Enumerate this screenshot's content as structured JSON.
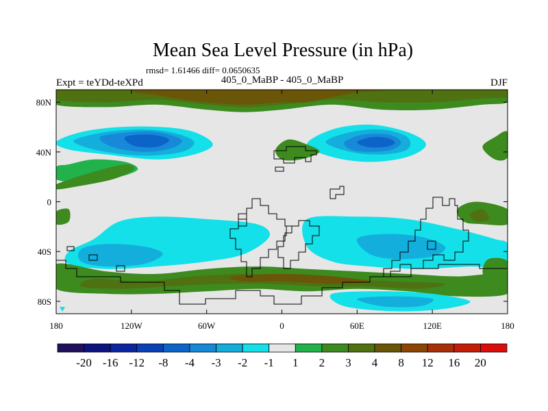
{
  "chart_data": {
    "type": "heatmap",
    "title": "Mean Sea Level Pressure (in hPa)",
    "subtitle": "rmsd= 1.61466 diff= 0.0650635",
    "center_label": "405_0_MaBP - 405_0_MaBP",
    "left_label": "Expt = teYDd-teXPd",
    "right_label": "DJF",
    "xlim": [
      -180,
      180
    ],
    "ylim": [
      -90,
      90
    ],
    "x_ticks": [
      {
        "value": -180,
        "label": "180"
      },
      {
        "value": -120,
        "label": "120W"
      },
      {
        "value": -60,
        "label": "60W"
      },
      {
        "value": 0,
        "label": "0"
      },
      {
        "value": 60,
        "label": "60E"
      },
      {
        "value": 120,
        "label": "120E"
      },
      {
        "value": 180,
        "label": "180"
      }
    ],
    "y_ticks": [
      {
        "value": 80,
        "label": "80N"
      },
      {
        "value": 40,
        "label": "40N"
      },
      {
        "value": 0,
        "label": "0"
      },
      {
        "value": -40,
        "label": "40S"
      },
      {
        "value": -80,
        "label": "80S"
      }
    ],
    "levels": [
      "-20",
      "-16",
      "-12",
      "-8",
      "-4",
      "-3",
      "-2",
      "-1",
      "1",
      "2",
      "3",
      "4",
      "8",
      "12",
      "16",
      "20"
    ],
    "colors": [
      "#22105e",
      "#0d137f",
      "#0a26a0",
      "#0842b6",
      "#0d64c8",
      "#1789d8",
      "#14aedc",
      "#13e0e8",
      "#e6e6e6",
      "#21b24b",
      "#3d8a1f",
      "#4f7111",
      "#6a5608",
      "#8c4504",
      "#a92f06",
      "#c41d06",
      "#dc0d0b"
    ],
    "regions": [
      {
        "name": "arctic-positive-band",
        "level": "2",
        "points": [
          [
            -180,
            78
          ],
          [
            -140,
            76
          ],
          [
            -100,
            78
          ],
          [
            -60,
            74
          ],
          [
            -30,
            72
          ],
          [
            0,
            74
          ],
          [
            40,
            78
          ],
          [
            80,
            74
          ],
          [
            120,
            74
          ],
          [
            160,
            78
          ],
          [
            180,
            80
          ],
          [
            180,
            90
          ],
          [
            -180,
            90
          ]
        ]
      },
      {
        "name": "arctic-positive-core",
        "level": "3",
        "points": [
          [
            -180,
            82
          ],
          [
            -140,
            80
          ],
          [
            -100,
            82
          ],
          [
            -60,
            78
          ],
          [
            -30,
            76
          ],
          [
            0,
            78
          ],
          [
            40,
            82
          ],
          [
            80,
            80
          ],
          [
            120,
            80
          ],
          [
            160,
            83
          ],
          [
            180,
            84
          ],
          [
            180,
            90
          ],
          [
            -180,
            90
          ]
        ]
      },
      {
        "name": "arctic-positive-max",
        "level": "4",
        "points": [
          [
            -110,
            90
          ],
          [
            -90,
            84
          ],
          [
            -60,
            80
          ],
          [
            -30,
            78
          ],
          [
            0,
            80
          ],
          [
            20,
            80
          ],
          [
            40,
            84
          ],
          [
            60,
            88
          ],
          [
            70,
            90
          ]
        ]
      },
      {
        "name": "n-pacific-low",
        "level": "-1",
        "points": [
          [
            -180,
            48
          ],
          [
            -160,
            56
          ],
          [
            -130,
            60
          ],
          [
            -95,
            60
          ],
          [
            -70,
            56
          ],
          [
            -55,
            46
          ],
          [
            -70,
            38
          ],
          [
            -100,
            34
          ],
          [
            -140,
            38
          ],
          [
            -170,
            42
          ]
        ]
      },
      {
        "name": "n-pacific-low-2",
        "level": "-2",
        "points": [
          [
            -165,
            50
          ],
          [
            -140,
            56
          ],
          [
            -110,
            58
          ],
          [
            -85,
            55
          ],
          [
            -70,
            48
          ],
          [
            -80,
            40
          ],
          [
            -110,
            37
          ],
          [
            -140,
            40
          ],
          [
            -160,
            45
          ]
        ]
      },
      {
        "name": "n-pacific-low-3",
        "level": "-3",
        "points": [
          [
            -145,
            52
          ],
          [
            -120,
            56
          ],
          [
            -100,
            56
          ],
          [
            -80,
            50
          ],
          [
            -88,
            43
          ],
          [
            -110,
            40
          ],
          [
            -135,
            44
          ]
        ]
      },
      {
        "name": "n-pacific-low-4",
        "level": "-4",
        "points": [
          [
            -125,
            52
          ],
          [
            -105,
            54
          ],
          [
            -90,
            50
          ],
          [
            -100,
            44
          ],
          [
            -118,
            45
          ]
        ]
      },
      {
        "name": "n-atlantic-low",
        "level": "-1",
        "points": [
          [
            20,
            46
          ],
          [
            40,
            58
          ],
          [
            70,
            62
          ],
          [
            100,
            56
          ],
          [
            115,
            46
          ],
          [
            100,
            36
          ],
          [
            70,
            32
          ],
          [
            40,
            36
          ]
        ]
      },
      {
        "name": "n-atlantic-low-2",
        "level": "-2",
        "points": [
          [
            35,
            48
          ],
          [
            55,
            56
          ],
          [
            80,
            58
          ],
          [
            100,
            52
          ],
          [
            100,
            42
          ],
          [
            80,
            38
          ],
          [
            55,
            40
          ]
        ]
      },
      {
        "name": "n-atlantic-low-3",
        "level": "-3",
        "points": [
          [
            50,
            48
          ],
          [
            65,
            54
          ],
          [
            85,
            54
          ],
          [
            95,
            48
          ],
          [
            88,
            42
          ],
          [
            70,
            40
          ],
          [
            55,
            42
          ]
        ]
      },
      {
        "name": "n-atlantic-low-4",
        "level": "-4",
        "points": [
          [
            60,
            48
          ],
          [
            72,
            52
          ],
          [
            85,
            51
          ],
          [
            90,
            47
          ],
          [
            82,
            44
          ],
          [
            68,
            44
          ]
        ]
      },
      {
        "name": "n-pacific-high-tongue",
        "level": "1",
        "points": [
          [
            -170,
            30
          ],
          [
            -150,
            34
          ],
          [
            -125,
            32
          ],
          [
            -115,
            26
          ],
          [
            -130,
            20
          ],
          [
            -160,
            16
          ],
          [
            -180,
            18
          ],
          [
            -180,
            28
          ]
        ]
      },
      {
        "name": "w-pacific-high",
        "level": "2",
        "points": [
          [
            -180,
            14
          ],
          [
            -150,
            24
          ],
          [
            -125,
            30
          ],
          [
            -118,
            26
          ],
          [
            -135,
            18
          ],
          [
            -165,
            12
          ],
          [
            -180,
            10
          ]
        ]
      },
      {
        "name": "n-europe-high",
        "level": "2",
        "points": [
          [
            -5,
            42
          ],
          [
            5,
            50
          ],
          [
            20,
            46
          ],
          [
            30,
            40
          ],
          [
            15,
            34
          ],
          [
            0,
            34
          ]
        ]
      },
      {
        "name": "ne-pacific-high",
        "level": "2",
        "points": [
          [
            160,
            44
          ],
          [
            170,
            52
          ],
          [
            180,
            56
          ],
          [
            180,
            36
          ],
          [
            170,
            34
          ]
        ]
      },
      {
        "name": "equatorial-high-w",
        "level": "2",
        "points": [
          [
            -180,
            -8
          ],
          [
            -170,
            -6
          ],
          [
            -170,
            -16
          ],
          [
            -180,
            -18
          ]
        ]
      },
      {
        "name": "w-pacific-high-2",
        "level": "2",
        "points": [
          [
            140,
            -6
          ],
          [
            155,
            0
          ],
          [
            180,
            -6
          ],
          [
            180,
            -18
          ],
          [
            160,
            -18
          ],
          [
            145,
            -16
          ]
        ]
      },
      {
        "name": "w-pacific-high-core",
        "level": "3",
        "points": [
          [
            150,
            -10
          ],
          [
            160,
            -6
          ],
          [
            165,
            -14
          ],
          [
            155,
            -16
          ]
        ]
      },
      {
        "name": "s-pacific-low",
        "level": "-1",
        "points": [
          [
            -130,
            -16
          ],
          [
            -100,
            -12
          ],
          [
            -60,
            -14
          ],
          [
            -20,
            -18
          ],
          [
            -10,
            -28
          ],
          [
            -30,
            -42
          ],
          [
            -60,
            -48
          ],
          [
            -100,
            -52
          ],
          [
            -140,
            -54
          ],
          [
            -170,
            -50
          ],
          [
            -170,
            -40
          ],
          [
            -150,
            -30
          ]
        ]
      },
      {
        "name": "s-pacific-low-2",
        "level": "-2",
        "points": [
          [
            -160,
            -38
          ],
          [
            -140,
            -34
          ],
          [
            -110,
            -36
          ],
          [
            -95,
            -42
          ],
          [
            -110,
            -50
          ],
          [
            -140,
            -52
          ],
          [
            -160,
            -48
          ]
        ]
      },
      {
        "name": "s-atlantic-low",
        "level": "-1",
        "points": [
          [
            20,
            -14
          ],
          [
            60,
            -12
          ],
          [
            100,
            -14
          ],
          [
            140,
            -22
          ],
          [
            170,
            -30
          ],
          [
            180,
            -34
          ],
          [
            180,
            -52
          ],
          [
            150,
            -52
          ],
          [
            110,
            -54
          ],
          [
            70,
            -52
          ],
          [
            40,
            -48
          ],
          [
            20,
            -36
          ]
        ]
      },
      {
        "name": "s-indian-low-2",
        "level": "-2",
        "points": [
          [
            60,
            -30
          ],
          [
            80,
            -26
          ],
          [
            110,
            -28
          ],
          [
            130,
            -36
          ],
          [
            120,
            -44
          ],
          [
            90,
            -46
          ],
          [
            70,
            -42
          ]
        ]
      },
      {
        "name": "southern-ocean-high",
        "level": "2",
        "points": [
          [
            -180,
            -50
          ],
          [
            -140,
            -56
          ],
          [
            -100,
            -58
          ],
          [
            -60,
            -54
          ],
          [
            -20,
            -52
          ],
          [
            20,
            -54
          ],
          [
            60,
            -56
          ],
          [
            100,
            -58
          ],
          [
            140,
            -60
          ],
          [
            180,
            -58
          ],
          [
            180,
            -74
          ],
          [
            140,
            -76
          ],
          [
            100,
            -72
          ],
          [
            60,
            -70
          ],
          [
            20,
            -72
          ],
          [
            -20,
            -70
          ],
          [
            -60,
            -72
          ],
          [
            -100,
            -74
          ],
          [
            -140,
            -74
          ],
          [
            -180,
            -70
          ]
        ]
      },
      {
        "name": "southern-ocean-high-2",
        "level": "3",
        "points": [
          [
            -150,
            -62
          ],
          [
            -110,
            -64
          ],
          [
            -70,
            -60
          ],
          [
            -30,
            -58
          ],
          [
            10,
            -60
          ],
          [
            50,
            -62
          ],
          [
            90,
            -64
          ],
          [
            130,
            -66
          ],
          [
            110,
            -70
          ],
          [
            70,
            -68
          ],
          [
            30,
            -68
          ],
          [
            -10,
            -66
          ],
          [
            -50,
            -66
          ],
          [
            -90,
            -68
          ],
          [
            -130,
            -70
          ],
          [
            -160,
            -68
          ]
        ]
      },
      {
        "name": "southern-ocean-high-3",
        "level": "4",
        "points": [
          [
            -40,
            -60
          ],
          [
            0,
            -58
          ],
          [
            40,
            -60
          ],
          [
            70,
            -64
          ],
          [
            40,
            -66
          ],
          [
            0,
            -64
          ],
          [
            -30,
            -64
          ]
        ]
      },
      {
        "name": "antarctic-low",
        "level": "-1",
        "points": [
          [
            40,
            -74
          ],
          [
            80,
            -72
          ],
          [
            120,
            -74
          ],
          [
            150,
            -80
          ],
          [
            130,
            -86
          ],
          [
            90,
            -88
          ],
          [
            50,
            -84
          ]
        ]
      },
      {
        "name": "antarctic-low-2",
        "level": "-2",
        "points": [
          [
            60,
            -78
          ],
          [
            90,
            -76
          ],
          [
            120,
            -78
          ],
          [
            110,
            -84
          ],
          [
            80,
            -84
          ]
        ]
      },
      {
        "name": "se-pacific-high",
        "level": "2",
        "points": [
          [
            165,
            -46
          ],
          [
            180,
            -48
          ],
          [
            180,
            -66
          ],
          [
            165,
            -64
          ],
          [
            160,
            -56
          ]
        ]
      }
    ]
  }
}
